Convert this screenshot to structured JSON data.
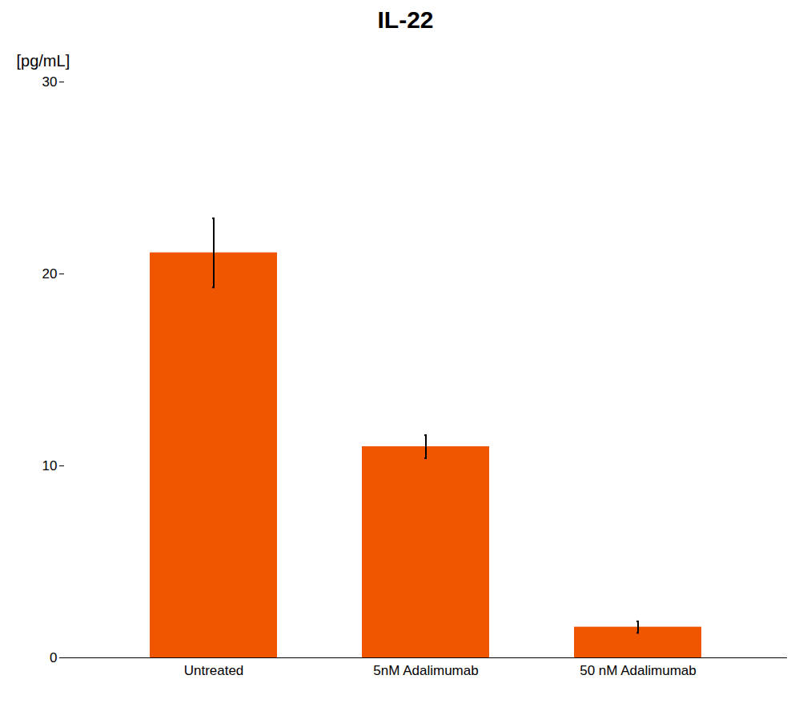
{
  "chart_data": {
    "type": "bar",
    "title": "IL-22",
    "ylabel": "[pg/mL]",
    "categories": [
      "Untreated",
      "5nM Adalimumab",
      "50 nM Adalimumab"
    ],
    "values": [
      21.1,
      11.0,
      1.6
    ],
    "errors": [
      1.8,
      0.6,
      0.3
    ],
    "color": "#F05500",
    "ylim": [
      0,
      30
    ],
    "yticks": [
      0,
      10,
      20,
      30
    ]
  }
}
